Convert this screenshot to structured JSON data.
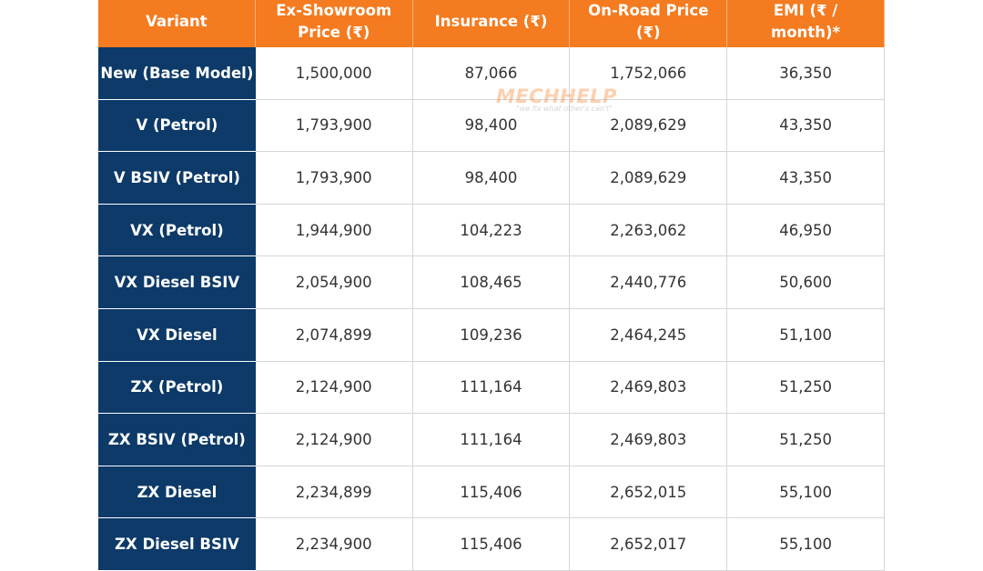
{
  "table": {
    "header": [
      "Variant",
      "Ex-Showroom Price (₹)",
      "Insurance (₹)",
      "On-Road Price (₹)",
      "EMI (₹ / month)*"
    ],
    "rows": [
      [
        "New (Base Model)",
        "1,500,000",
        "87,066",
        "1,752,066",
        "36,350"
      ],
      [
        "V (Petrol)",
        "1,793,900",
        "98,400",
        "2,089,629",
        "43,350"
      ],
      [
        "V BSIV (Petrol)",
        "1,793,900",
        "98,400",
        "2,089,629",
        "43,350"
      ],
      [
        "VX (Petrol)",
        "1,944,900",
        "104,223",
        "2,263,062",
        "46,950"
      ],
      [
        "VX Diesel BSIV",
        "2,054,900",
        "108,465",
        "2,440,776",
        "50,600"
      ],
      [
        "VX Diesel",
        "2,074,899",
        "109,236",
        "2,464,245",
        "51,100"
      ],
      [
        "ZX (Petrol)",
        "2,124,900",
        "111,164",
        "2,469,803",
        "51,250"
      ],
      [
        "ZX BSIV (Petrol)",
        "2,124,900",
        "111,164",
        "2,469,803",
        "51,250"
      ],
      [
        "ZX Diesel",
        "2,234,899",
        "115,406",
        "2,652,015",
        "55,100"
      ],
      [
        "ZX Diesel BSIV",
        "2,234,900",
        "115,406",
        "2,652,017",
        "55,100"
      ]
    ]
  },
  "watermark": {
    "brand": "MECHHELP",
    "tagline": "\"we fix what other's can't\""
  }
}
